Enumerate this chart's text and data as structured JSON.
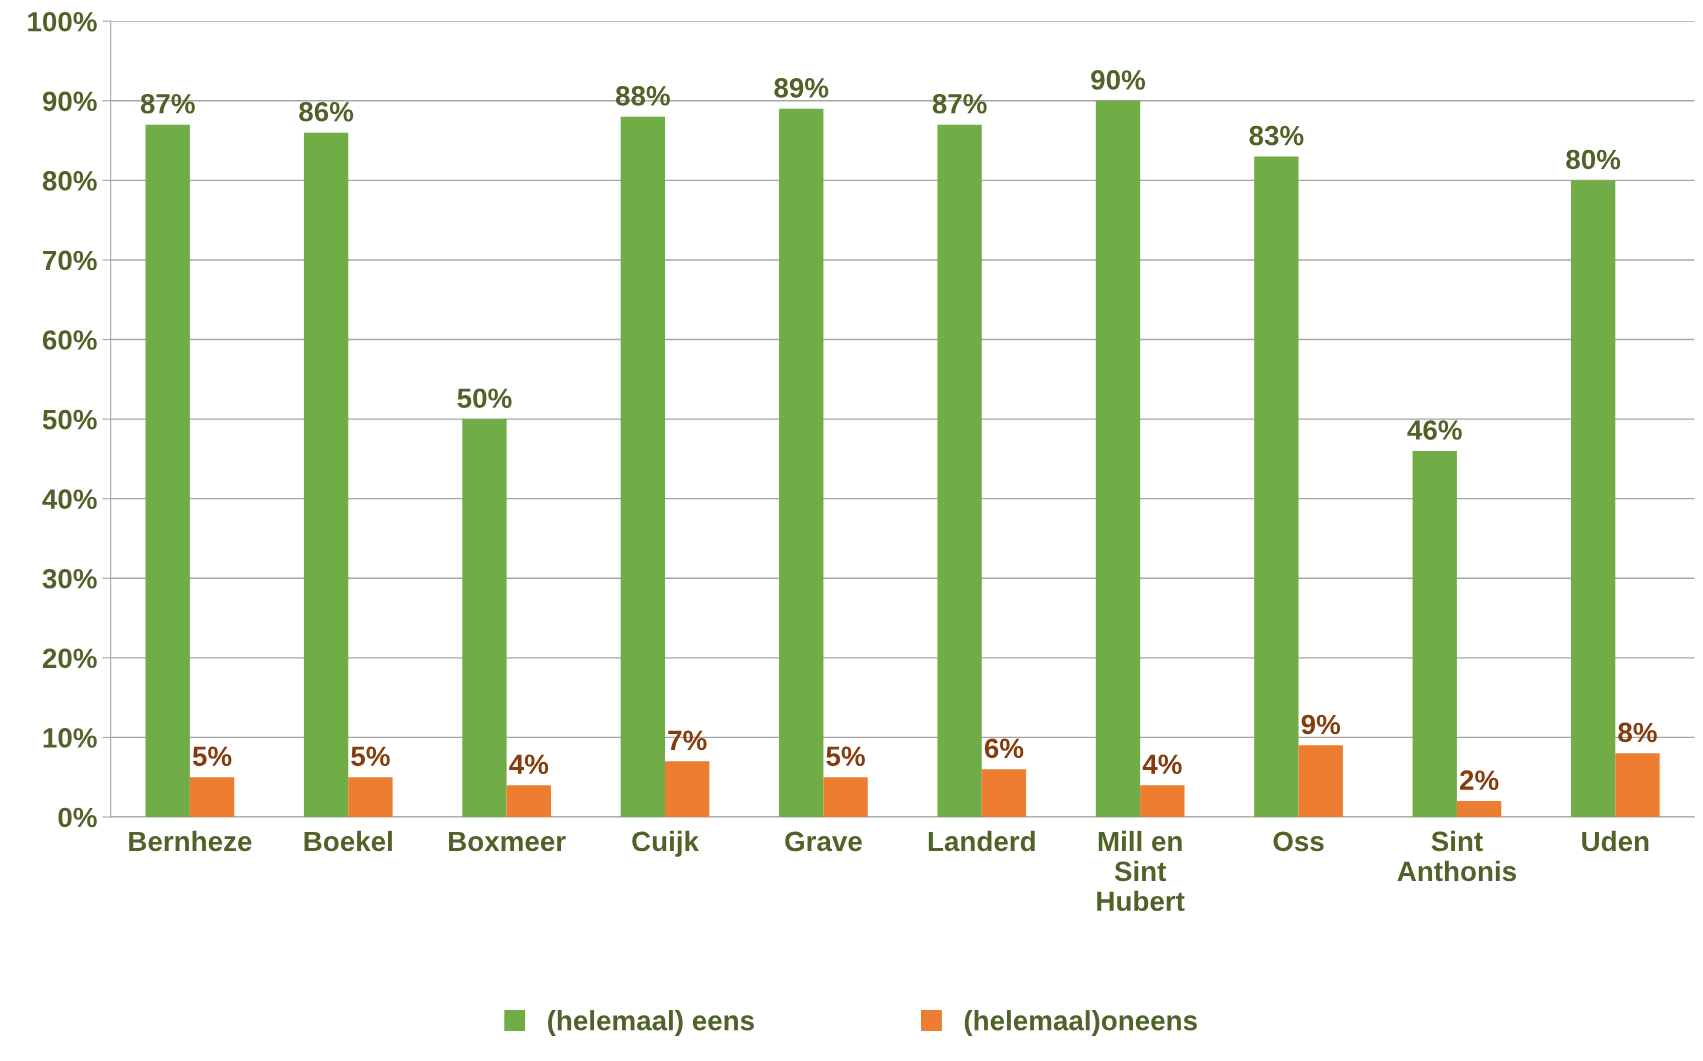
{
  "chart_data": {
    "type": "bar",
    "categories": [
      "Bernheze",
      "Boekel",
      "Boxmeer",
      "Cuijk",
      "Grave",
      "Landerd",
      "Mill en\nSint\nHubert",
      "Oss",
      "Sint\nAnthonis",
      "Uden"
    ],
    "series": [
      {
        "name": "(helemaal) eens",
        "color": "#70ad47",
        "values": [
          87,
          86,
          50,
          88,
          89,
          87,
          90,
          83,
          46,
          80
        ],
        "value_labels": [
          "87%",
          "86%",
          "50%",
          "88%",
          "89%",
          "87%",
          "90%",
          "83%",
          "46%",
          "80%"
        ]
      },
      {
        "name": "(helemaal)oneens",
        "color": "#ed7d31",
        "values": [
          5,
          5,
          4,
          7,
          5,
          6,
          4,
          9,
          2,
          8
        ],
        "value_labels": [
          "5%",
          "5%",
          "4%",
          "7%",
          "5%",
          "6%",
          "4%",
          "9%",
          "2%",
          "8%"
        ]
      }
    ],
    "ylim": [
      0,
      100
    ],
    "yticks": [
      {
        "value": 0,
        "label": "0%"
      },
      {
        "value": 10,
        "label": "10%"
      },
      {
        "value": 20,
        "label": "20%"
      },
      {
        "value": 30,
        "label": "30%"
      },
      {
        "value": 40,
        "label": "40%"
      },
      {
        "value": 50,
        "label": "50%"
      },
      {
        "value": 60,
        "label": "60%"
      },
      {
        "value": 70,
        "label": "70%"
      },
      {
        "value": 80,
        "label": "80%"
      },
      {
        "value": 90,
        "label": "90%"
      },
      {
        "value": 100,
        "label": "100%"
      }
    ],
    "grid": "y",
    "legend": "bottom"
  }
}
